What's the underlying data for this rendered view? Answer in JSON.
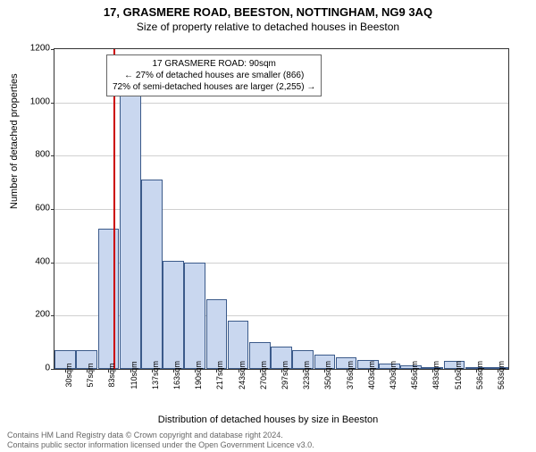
{
  "titles": {
    "main": "17, GRASMERE ROAD, BEESTON, NOTTINGHAM, NG9 3AQ",
    "sub": "Size of property relative to detached houses in Beeston"
  },
  "axes": {
    "y_label": "Number of detached properties",
    "x_label": "Distribution of detached houses by size in Beeston",
    "y_ticks": [
      0,
      200,
      400,
      600,
      800,
      1000,
      1200
    ],
    "ymax": 1200,
    "x_tick_labels": [
      "30sqm",
      "57sqm",
      "83sqm",
      "110sqm",
      "137sqm",
      "163sqm",
      "190sqm",
      "217sqm",
      "243sqm",
      "270sqm",
      "297sqm",
      "323sqm",
      "350sqm",
      "376sqm",
      "403sqm",
      "430sqm",
      "456sqm",
      "483sqm",
      "510sqm",
      "536sqm",
      "563sqm"
    ]
  },
  "chart": {
    "type": "histogram",
    "bar_fill": "#c9d7ef",
    "bar_stroke": "#3b5a8a",
    "grid_color": "#d0d0d0",
    "background": "#ffffff",
    "bar_values": [
      70,
      70,
      525,
      1065,
      710,
      405,
      400,
      260,
      180,
      100,
      85,
      70,
      55,
      45,
      35,
      20,
      15,
      8,
      30,
      8,
      5
    ],
    "marker": {
      "value_sqm": 90,
      "x_start_sqm": 30,
      "x_step_sqm": 27,
      "color": "#cc0000"
    }
  },
  "annotation": {
    "line1": "17 GRASMERE ROAD: 90sqm",
    "line2": "← 27% of detached houses are smaller (866)",
    "line3": "72% of semi-detached houses are larger (2,255) →"
  },
  "footer": {
    "line1": "Contains HM Land Registry data © Crown copyright and database right 2024.",
    "line2": "Contains public sector information licensed under the Open Government Licence v3.0."
  },
  "style": {
    "marker_color": "#cc0000",
    "title_fontsize": 13,
    "sub_fontsize": 12,
    "axis_label_fontsize": 11,
    "tick_fontsize": 10,
    "annotation_fontsize": 10,
    "footer_color": "#666666"
  }
}
